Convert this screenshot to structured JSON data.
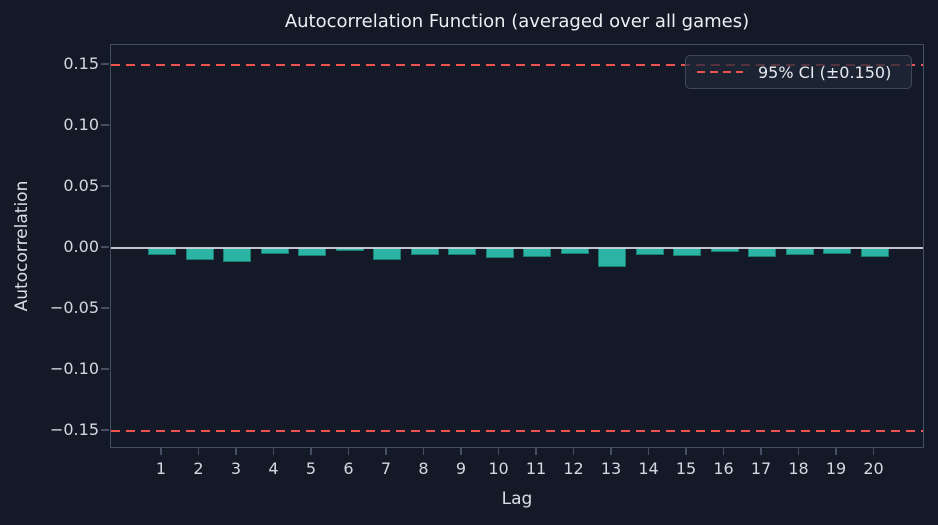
{
  "figure": {
    "title": "Autocorrelation Function (averaged over all games)",
    "x_axis": {
      "label": "Lag",
      "tick_labels": [
        "1",
        "2",
        "3",
        "4",
        "5",
        "6",
        "7",
        "8",
        "9",
        "10",
        "11",
        "12",
        "13",
        "14",
        "15",
        "16",
        "17",
        "18",
        "19",
        "20"
      ]
    },
    "y_axis": {
      "label": "Autocorrelation",
      "tick_labels": [
        "0.15",
        "0.10",
        "0.05",
        "0.00",
        "−0.05",
        "−0.10",
        "−0.15"
      ]
    },
    "legend": {
      "label": "95% CI (±0.150)"
    },
    "colors": {
      "background": "#131927",
      "bar": "#2bb4a3",
      "ci_line": "#ef5350",
      "zero_line": "#dde2ea",
      "spine": "#454f63",
      "tick_text": "#d3d8e0",
      "title_text": "#eceef2"
    }
  },
  "chart_data": {
    "type": "bar",
    "title": "Autocorrelation Function (averaged over all games)",
    "xlabel": "Lag",
    "ylabel": "Autocorrelation",
    "categories": [
      1,
      2,
      3,
      4,
      5,
      6,
      7,
      8,
      9,
      10,
      11,
      12,
      13,
      14,
      15,
      16,
      17,
      18,
      19,
      20
    ],
    "values": [
      -0.0055,
      -0.0096,
      -0.0115,
      -0.0047,
      -0.0063,
      -0.0022,
      -0.0098,
      -0.006,
      -0.0055,
      -0.0085,
      -0.0071,
      -0.0049,
      -0.0153,
      -0.0055,
      -0.0063,
      -0.0036,
      -0.0073,
      -0.006,
      -0.0047,
      -0.0077
    ],
    "ylim": [
      -0.165,
      0.166
    ],
    "yticks": [
      0.15,
      0.1,
      0.05,
      0.0,
      -0.05,
      -0.1,
      -0.15
    ],
    "confidence_interval": {
      "level": "95%",
      "value": 0.15,
      "upper": 0.15,
      "lower": -0.15,
      "line_style": "dashed"
    },
    "legend": [
      {
        "label": "95% CI (±0.150)",
        "position": "upper right"
      }
    ],
    "grid": false,
    "bar_color": "#2bb4a3",
    "ci_color": "#ef5350"
  }
}
